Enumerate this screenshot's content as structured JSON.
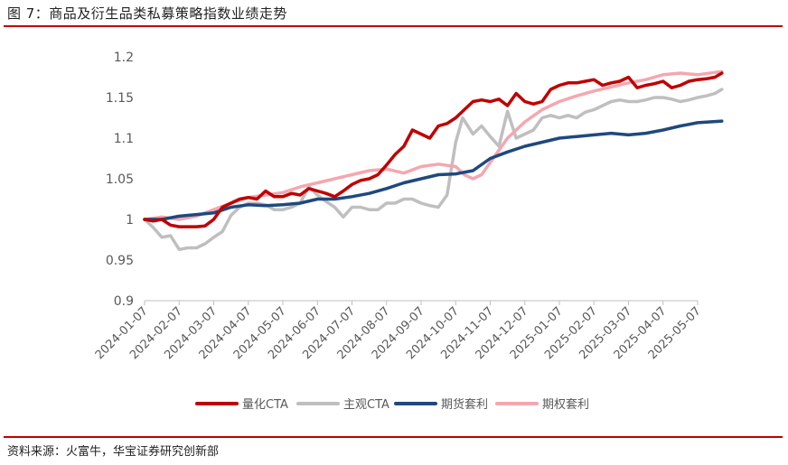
{
  "figure": {
    "title": "图 7：商品及衍生品类私募策略指数业绩走势",
    "source": "资料来源：火富牛，华宝证券研究创新部"
  },
  "chart_data": {
    "type": "line",
    "title": "商品及衍生品类私募策略指数业绩走势",
    "xlabel": "",
    "ylabel": "",
    "ylim": [
      0.9,
      1.2
    ],
    "grid": false,
    "legend_position": "bottom",
    "x_tick_labels": [
      "2024-01-07",
      "2024-02-07",
      "2024-03-07",
      "2024-04-07",
      "2024-05-07",
      "2024-06-07",
      "2024-07-07",
      "2024-08-07",
      "2024-09-07",
      "2024-10-07",
      "2024-11-07",
      "2024-12-07",
      "2025-01-07",
      "2025-02-07",
      "2025-03-07",
      "2025-04-07",
      "2025-05-07"
    ],
    "y_tick_labels": [
      "0.9",
      "0.95",
      "1",
      "1.05",
      "1.1",
      "1.15",
      "1.2"
    ],
    "y_ticks": [
      0.9,
      0.95,
      1.0,
      1.05,
      1.1,
      1.15,
      1.2
    ],
    "series": [
      {
        "name": "量化CTA",
        "color": "#c00000",
        "points": [
          [
            0,
            1.0
          ],
          [
            0.25,
            0.998
          ],
          [
            0.5,
            1.0
          ],
          [
            0.75,
            0.993
          ],
          [
            1,
            0.991
          ],
          [
            1.25,
            0.991
          ],
          [
            1.5,
            0.991
          ],
          [
            1.75,
            0.992
          ],
          [
            2,
            1.0
          ],
          [
            2.25,
            1.015
          ],
          [
            2.5,
            1.02
          ],
          [
            2.75,
            1.025
          ],
          [
            3,
            1.027
          ],
          [
            3.25,
            1.025
          ],
          [
            3.5,
            1.035
          ],
          [
            3.75,
            1.028
          ],
          [
            4,
            1.028
          ],
          [
            4.25,
            1.032
          ],
          [
            4.5,
            1.03
          ],
          [
            4.75,
            1.038
          ],
          [
            5,
            1.035
          ],
          [
            5.25,
            1.032
          ],
          [
            5.5,
            1.028
          ],
          [
            5.75,
            1.035
          ],
          [
            6,
            1.043
          ],
          [
            6.25,
            1.048
          ],
          [
            6.5,
            1.05
          ],
          [
            6.75,
            1.055
          ],
          [
            7,
            1.067
          ],
          [
            7.25,
            1.08
          ],
          [
            7.5,
            1.09
          ],
          [
            7.75,
            1.11
          ],
          [
            8,
            1.105
          ],
          [
            8.25,
            1.1
          ],
          [
            8.5,
            1.115
          ],
          [
            8.75,
            1.118
          ],
          [
            9,
            1.125
          ],
          [
            9.25,
            1.135
          ],
          [
            9.5,
            1.145
          ],
          [
            9.75,
            1.147
          ],
          [
            10,
            1.145
          ],
          [
            10.25,
            1.148
          ],
          [
            10.5,
            1.14
          ],
          [
            10.75,
            1.155
          ],
          [
            11,
            1.145
          ],
          [
            11.25,
            1.142
          ],
          [
            11.5,
            1.145
          ],
          [
            11.75,
            1.16
          ],
          [
            12,
            1.165
          ],
          [
            12.25,
            1.168
          ],
          [
            12.5,
            1.168
          ],
          [
            12.75,
            1.17
          ],
          [
            13,
            1.172
          ],
          [
            13.25,
            1.165
          ],
          [
            13.5,
            1.168
          ],
          [
            13.75,
            1.17
          ],
          [
            14,
            1.175
          ],
          [
            14.25,
            1.162
          ],
          [
            14.5,
            1.165
          ],
          [
            14.75,
            1.167
          ],
          [
            15,
            1.17
          ],
          [
            15.25,
            1.162
          ],
          [
            15.5,
            1.165
          ],
          [
            15.75,
            1.17
          ],
          [
            16,
            1.172
          ],
          [
            16.25,
            1.173
          ],
          [
            16.5,
            1.175
          ],
          [
            16.7,
            1.18
          ]
        ]
      },
      {
        "name": "主观CTA",
        "color": "#bfbfbf",
        "points": [
          [
            0,
            1.0
          ],
          [
            0.25,
            0.99
          ],
          [
            0.5,
            0.978
          ],
          [
            0.75,
            0.98
          ],
          [
            1,
            0.963
          ],
          [
            1.25,
            0.965
          ],
          [
            1.5,
            0.965
          ],
          [
            1.75,
            0.97
          ],
          [
            2,
            0.978
          ],
          [
            2.25,
            0.985
          ],
          [
            2.5,
            1.005
          ],
          [
            2.75,
            1.015
          ],
          [
            3,
            1.02
          ],
          [
            3.25,
            1.02
          ],
          [
            3.5,
            1.018
          ],
          [
            3.75,
            1.012
          ],
          [
            4,
            1.012
          ],
          [
            4.25,
            1.015
          ],
          [
            4.5,
            1.02
          ],
          [
            4.75,
            1.04
          ],
          [
            5,
            1.03
          ],
          [
            5.25,
            1.022
          ],
          [
            5.5,
            1.015
          ],
          [
            5.75,
            1.003
          ],
          [
            6,
            1.015
          ],
          [
            6.25,
            1.015
          ],
          [
            6.5,
            1.012
          ],
          [
            6.75,
            1.012
          ],
          [
            7,
            1.02
          ],
          [
            7.25,
            1.02
          ],
          [
            7.5,
            1.025
          ],
          [
            7.75,
            1.025
          ],
          [
            8,
            1.02
          ],
          [
            8.25,
            1.017
          ],
          [
            8.5,
            1.015
          ],
          [
            8.75,
            1.03
          ],
          [
            9,
            1.095
          ],
          [
            9.2,
            1.125
          ],
          [
            9.5,
            1.105
          ],
          [
            9.75,
            1.115
          ],
          [
            10,
            1.102
          ],
          [
            10.25,
            1.09
          ],
          [
            10.5,
            1.133
          ],
          [
            10.75,
            1.1
          ],
          [
            11,
            1.105
          ],
          [
            11.25,
            1.11
          ],
          [
            11.5,
            1.125
          ],
          [
            11.75,
            1.128
          ],
          [
            12,
            1.125
          ],
          [
            12.25,
            1.128
          ],
          [
            12.5,
            1.125
          ],
          [
            12.75,
            1.132
          ],
          [
            13,
            1.135
          ],
          [
            13.25,
            1.14
          ],
          [
            13.5,
            1.145
          ],
          [
            13.75,
            1.147
          ],
          [
            14,
            1.145
          ],
          [
            14.25,
            1.145
          ],
          [
            14.5,
            1.147
          ],
          [
            14.75,
            1.15
          ],
          [
            15,
            1.15
          ],
          [
            15.25,
            1.148
          ],
          [
            15.5,
            1.145
          ],
          [
            15.75,
            1.147
          ],
          [
            16,
            1.15
          ],
          [
            16.25,
            1.152
          ],
          [
            16.5,
            1.155
          ],
          [
            16.7,
            1.16
          ]
        ]
      },
      {
        "name": "期货套利",
        "color": "#1f497d",
        "points": [
          [
            0,
            1.0
          ],
          [
            0.5,
            1.0
          ],
          [
            1,
            1.004
          ],
          [
            1.5,
            1.006
          ],
          [
            2,
            1.008
          ],
          [
            2.5,
            1.015
          ],
          [
            3,
            1.018
          ],
          [
            3.5,
            1.017
          ],
          [
            4,
            1.018
          ],
          [
            4.5,
            1.02
          ],
          [
            5,
            1.025
          ],
          [
            5.5,
            1.025
          ],
          [
            6,
            1.028
          ],
          [
            6.5,
            1.032
          ],
          [
            7,
            1.038
          ],
          [
            7.5,
            1.045
          ],
          [
            8,
            1.05
          ],
          [
            8.5,
            1.055
          ],
          [
            9,
            1.056
          ],
          [
            9.5,
            1.06
          ],
          [
            10,
            1.075
          ],
          [
            10.5,
            1.083
          ],
          [
            11,
            1.09
          ],
          [
            11.5,
            1.095
          ],
          [
            12,
            1.1
          ],
          [
            12.5,
            1.102
          ],
          [
            13,
            1.104
          ],
          [
            13.5,
            1.106
          ],
          [
            14,
            1.104
          ],
          [
            14.5,
            1.106
          ],
          [
            15,
            1.11
          ],
          [
            15.5,
            1.115
          ],
          [
            16,
            1.119
          ],
          [
            16.7,
            1.121
          ]
        ]
      },
      {
        "name": "期权套利",
        "color": "#f4a7b0",
        "points": [
          [
            0,
            1.0
          ],
          [
            0.5,
            1.003
          ],
          [
            1,
            1.0
          ],
          [
            1.5,
            1.004
          ],
          [
            2,
            1.012
          ],
          [
            2.5,
            1.02
          ],
          [
            3,
            1.027
          ],
          [
            3.5,
            1.03
          ],
          [
            4,
            1.033
          ],
          [
            4.5,
            1.04
          ],
          [
            5,
            1.045
          ],
          [
            5.5,
            1.05
          ],
          [
            6,
            1.055
          ],
          [
            6.5,
            1.06
          ],
          [
            7,
            1.062
          ],
          [
            7.5,
            1.057
          ],
          [
            8,
            1.065
          ],
          [
            8.5,
            1.068
          ],
          [
            9,
            1.065
          ],
          [
            9.25,
            1.055
          ],
          [
            9.5,
            1.05
          ],
          [
            9.75,
            1.055
          ],
          [
            10,
            1.07
          ],
          [
            10.5,
            1.1
          ],
          [
            11,
            1.12
          ],
          [
            11.5,
            1.135
          ],
          [
            12,
            1.145
          ],
          [
            12.5,
            1.152
          ],
          [
            13,
            1.158
          ],
          [
            13.5,
            1.163
          ],
          [
            14,
            1.168
          ],
          [
            14.5,
            1.172
          ],
          [
            15,
            1.178
          ],
          [
            15.5,
            1.18
          ],
          [
            16,
            1.178
          ],
          [
            16.7,
            1.182
          ]
        ]
      }
    ]
  }
}
